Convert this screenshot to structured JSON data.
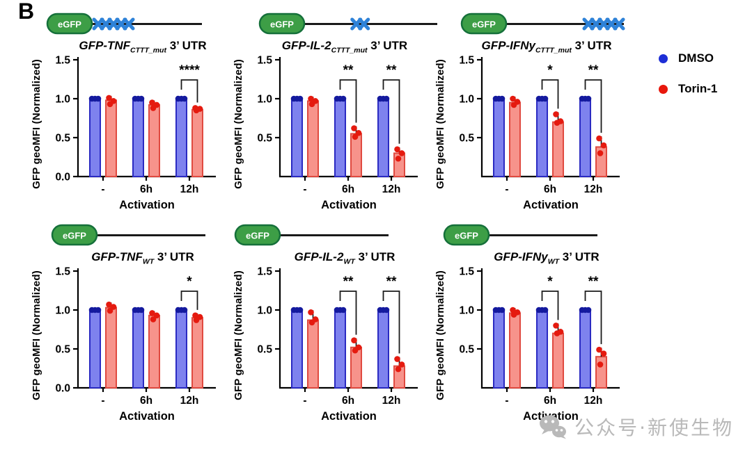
{
  "panel_label": "B",
  "legend": {
    "items": [
      {
        "label": "DMSO",
        "color": "#1d2ed6"
      },
      {
        "label": "Torin-1",
        "color": "#e8170c"
      }
    ]
  },
  "watermark": {
    "icon": "wechat-icon",
    "text": "公众号·新使生物",
    "color": "#b9b9b9"
  },
  "colors": {
    "dmso_fill": "#7e82ee",
    "dmso_stroke": "#2a2ac2",
    "dmso_point": "#141a9e",
    "torin_fill": "#f7938b",
    "torin_stroke": "#e04a40",
    "torin_point": "#e51a0f",
    "schematic_box_fill": "#3d9e46",
    "schematic_box_stroke": "#15703a",
    "schematic_line": "#1a1a1a",
    "mutation_mark": "#2e82d8",
    "axis": "#000000"
  },
  "chart_data": [
    {
      "type": "bar",
      "title": {
        "gene": "GFP-TNF",
        "subscript": "CTTT_mut",
        "suffix": " 3’ UTR"
      },
      "schematic": {
        "label": "eGFP",
        "marks_position": "start",
        "mark_count": 5
      },
      "ylabel": "GFP geoMFI (Normalized)",
      "xlabel": "Activation",
      "categories": [
        "-",
        "6h",
        "12h"
      ],
      "ylim": [
        0,
        1.5
      ],
      "ytick_labels": [
        "1.5",
        "1.0",
        "0.5",
        "0.0"
      ],
      "series": [
        {
          "name": "DMSO",
          "values": [
            1.0,
            1.0,
            1.0
          ],
          "points": [
            [
              1.0,
              1.0,
              1.0
            ],
            [
              1.0,
              1.0,
              1.0
            ],
            [
              1.0,
              1.0,
              1.0
            ]
          ]
        },
        {
          "name": "Torin-1",
          "values": [
            0.98,
            0.92,
            0.86
          ],
          "points": [
            [
              1.01,
              0.97,
              0.93
            ],
            [
              0.95,
              0.92,
              0.88
            ],
            [
              0.88,
              0.87,
              0.85
            ]
          ]
        }
      ],
      "significance": [
        {
          "group_index": 2,
          "group": "12h",
          "label": "****"
        }
      ]
    },
    {
      "type": "bar",
      "title": {
        "gene": "GFP-IL-2",
        "subscript": "CTTT_mut",
        "suffix": " 3’ UTR"
      },
      "schematic": {
        "label": "eGFP",
        "marks_position": "middle",
        "mark_count": 2
      },
      "ylabel": "GFP geoMFI (Normalized)",
      "xlabel": "Activation",
      "categories": [
        "-",
        "6h",
        "12h"
      ],
      "ylim": [
        0,
        1.5
      ],
      "ytick_labels": [
        "1.5",
        "1.0",
        "0.5"
      ],
      "series": [
        {
          "name": "DMSO",
          "values": [
            1.0,
            1.0,
            1.0
          ],
          "points": [
            [
              1.0,
              1.0,
              1.0
            ],
            [
              1.0,
              1.0,
              1.0
            ],
            [
              1.0,
              1.0,
              1.0
            ]
          ]
        },
        {
          "name": "Torin-1",
          "values": [
            0.97,
            0.55,
            0.3
          ],
          "points": [
            [
              1.0,
              0.97,
              0.93
            ],
            [
              0.62,
              0.56,
              0.51
            ],
            [
              0.35,
              0.3,
              0.23
            ]
          ]
        }
      ],
      "significance": [
        {
          "group_index": 1,
          "group": "6h",
          "label": "**"
        },
        {
          "group_index": 2,
          "group": "12h",
          "label": "**"
        }
      ]
    },
    {
      "type": "bar",
      "title": {
        "gene": "GFP-IFNy",
        "subscript": "CTTT_mut",
        "suffix": " 3’ UTR"
      },
      "schematic": {
        "label": "eGFP",
        "marks_position": "end",
        "mark_count": 5
      },
      "ylabel": "GFP geoMFI (Normalized)",
      "xlabel": "Activation",
      "categories": [
        "-",
        "6h",
        "12h"
      ],
      "ylim": [
        0,
        1.5
      ],
      "ytick_labels": [
        "1.5",
        "1.0",
        "0.5"
      ],
      "series": [
        {
          "name": "DMSO",
          "values": [
            1.0,
            1.0,
            1.0
          ],
          "points": [
            [
              1.0,
              1.0,
              1.0
            ],
            [
              1.0,
              1.0,
              1.0
            ],
            [
              1.0,
              1.0,
              1.0
            ]
          ]
        },
        {
          "name": "Torin-1",
          "values": [
            0.95,
            0.7,
            0.38
          ],
          "points": [
            [
              1.0,
              0.96,
              0.92
            ],
            [
              0.8,
              0.71,
              0.69
            ],
            [
              0.49,
              0.4,
              0.3
            ]
          ]
        }
      ],
      "significance": [
        {
          "group_index": 1,
          "group": "6h",
          "label": "*"
        },
        {
          "group_index": 2,
          "group": "12h",
          "label": "**"
        }
      ]
    },
    {
      "type": "bar",
      "title": {
        "gene": "GFP-TNF",
        "subscript": "WT",
        "suffix": " 3’ UTR"
      },
      "schematic": {
        "label": "eGFP",
        "marks_position": "none",
        "mark_count": 0
      },
      "ylabel": "GFP geoMFI (Normalized)",
      "xlabel": "Activation",
      "categories": [
        "-",
        "6h",
        "12h"
      ],
      "ylim": [
        0,
        1.5
      ],
      "ytick_labels": [
        "1.5",
        "1.0",
        "0.5",
        "0.0"
      ],
      "series": [
        {
          "name": "DMSO",
          "values": [
            1.0,
            1.0,
            1.0
          ],
          "points": [
            [
              1.0,
              1.0,
              1.0
            ],
            [
              1.0,
              1.0,
              1.0
            ],
            [
              1.0,
              1.0,
              1.0
            ]
          ]
        },
        {
          "name": "Torin-1",
          "values": [
            1.03,
            0.93,
            0.9
          ],
          "points": [
            [
              1.07,
              1.04,
              0.99
            ],
            [
              0.96,
              0.93,
              0.88
            ],
            [
              0.93,
              0.91,
              0.87
            ]
          ]
        }
      ],
      "significance": [
        {
          "group_index": 2,
          "group": "12h",
          "label": "*"
        }
      ]
    },
    {
      "type": "bar",
      "title": {
        "gene": "GFP-IL-2",
        "subscript": "WT",
        "suffix": " 3’ UTR"
      },
      "schematic": {
        "label": "eGFP",
        "marks_position": "none",
        "mark_count": 0
      },
      "ylabel": "GFP geoMFI (Normalized)",
      "xlabel": "Activation",
      "categories": [
        "-",
        "6h",
        "12h"
      ],
      "ylim": [
        0,
        1.5
      ],
      "ytick_labels": [
        "1.5",
        "1.0",
        "0.5"
      ],
      "series": [
        {
          "name": "DMSO",
          "values": [
            1.0,
            1.0,
            1.0
          ],
          "points": [
            [
              1.0,
              1.0,
              1.0
            ],
            [
              1.0,
              1.0,
              1.0
            ],
            [
              1.0,
              1.0,
              1.0
            ]
          ]
        },
        {
          "name": "Torin-1",
          "values": [
            0.87,
            0.52,
            0.28
          ],
          "points": [
            [
              0.97,
              0.88,
              0.84
            ],
            [
              0.61,
              0.52,
              0.48
            ],
            [
              0.37,
              0.3,
              0.24
            ]
          ]
        }
      ],
      "significance": [
        {
          "group_index": 1,
          "group": "6h",
          "label": "**"
        },
        {
          "group_index": 2,
          "group": "12h",
          "label": "**"
        }
      ]
    },
    {
      "type": "bar",
      "title": {
        "gene": "GFP-IFNy",
        "subscript": "WT",
        "suffix": " 3’ UTR"
      },
      "schematic": {
        "label": "eGFP",
        "marks_position": "none",
        "mark_count": 0
      },
      "ylabel": "GFP geoMFI (Normalized)",
      "xlabel": "Activation",
      "categories": [
        "-",
        "6h",
        "12h"
      ],
      "ylim": [
        0,
        1.5
      ],
      "ytick_labels": [
        "1.5",
        "1.0",
        "0.5"
      ],
      "series": [
        {
          "name": "DMSO",
          "values": [
            1.0,
            1.0,
            1.0
          ],
          "points": [
            [
              1.0,
              1.0,
              1.0
            ],
            [
              1.0,
              1.0,
              1.0
            ],
            [
              1.0,
              1.0,
              1.0
            ]
          ]
        },
        {
          "name": "Torin-1",
          "values": [
            0.96,
            0.7,
            0.4
          ],
          "points": [
            [
              1.0,
              0.97,
              0.94
            ],
            [
              0.8,
              0.72,
              0.7
            ],
            [
              0.49,
              0.44,
              0.3
            ]
          ]
        }
      ],
      "significance": [
        {
          "group_index": 1,
          "group": "6h",
          "label": "*"
        },
        {
          "group_index": 2,
          "group": "12h",
          "label": "**"
        }
      ]
    }
  ]
}
